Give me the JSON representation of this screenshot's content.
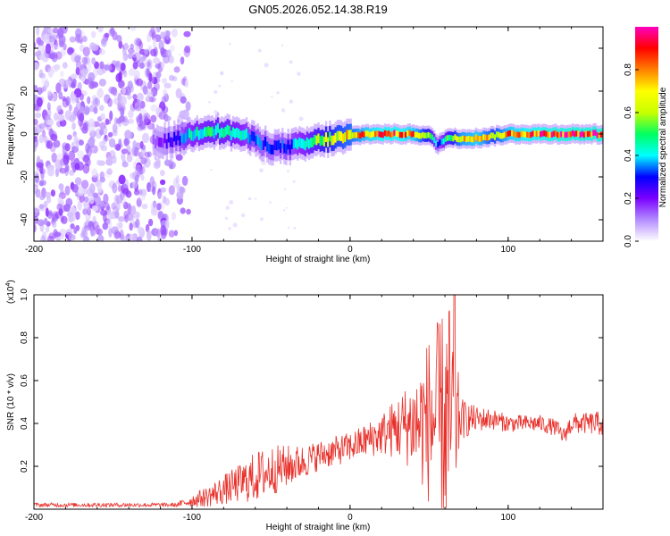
{
  "title": "GN05.2026.052.14.38.R19",
  "chart_data": [
    {
      "type": "heatmap",
      "xlabel": "Height of straight line (km)",
      "ylabel": "Frequency (Hz)",
      "xlim": [
        -200,
        160
      ],
      "ylim": [
        -50,
        50
      ],
      "x_ticks": [
        -200,
        -100,
        0,
        100
      ],
      "y_ticks": [
        -40,
        -20,
        0,
        20,
        40
      ],
      "noise_region": {
        "x_range": [
          -200,
          -108
        ],
        "y_range": [
          -50,
          50
        ],
        "description_level": "low"
      },
      "ridge": {
        "x": [
          -125,
          -115,
          -108,
          -100,
          -90,
          -80,
          -70,
          -60,
          -50,
          -40,
          -30,
          -20,
          -10,
          0,
          10,
          20,
          30,
          40,
          50,
          55,
          60,
          70,
          80,
          90,
          100,
          120,
          140,
          160
        ],
        "freq": [
          -4,
          -3,
          -2,
          0,
          2,
          1,
          0,
          -3,
          -6,
          -6,
          -5,
          -3,
          -2,
          -1,
          0,
          0,
          0,
          0,
          -1,
          -5,
          -2,
          -2,
          -2,
          -1,
          0,
          0,
          0,
          0
        ],
        "amplitude": [
          0.15,
          0.25,
          0.35,
          0.45,
          0.5,
          0.5,
          0.45,
          0.35,
          0.3,
          0.35,
          0.45,
          0.6,
          0.7,
          0.75,
          0.85,
          0.9,
          0.9,
          0.85,
          0.6,
          0.3,
          0.55,
          0.8,
          0.85,
          0.7,
          0.85,
          0.92,
          0.95,
          0.95
        ]
      },
      "colorbar": {
        "label": "Normalized spectral amplitude",
        "range": [
          0,
          1
        ],
        "ticks": [
          "0.0",
          "0.2",
          "0.4",
          "0.6",
          "0.8"
        ],
        "colors": [
          "#ffffff",
          "#b48cff",
          "#7a00ff",
          "#0000ff",
          "#00ffff",
          "#00ff60",
          "#c8ff00",
          "#ffff00",
          "#ff8000",
          "#ff0000",
          "#ff00c0"
        ]
      }
    },
    {
      "type": "line",
      "xlabel": "Height of straight line (km)",
      "ylabel": "SNR (10 * v/v)",
      "y_multiplier": "(x10",
      "y_multiplier_exp": "4",
      "y_multiplier_close": ")",
      "xlim": [
        -200,
        160
      ],
      "ylim": [
        0,
        1.0
      ],
      "x_ticks": [
        -200,
        -100,
        0,
        100
      ],
      "y_ticks": [
        0.2,
        0.4,
        0.6,
        0.8,
        1.0
      ],
      "series": [
        {
          "name": "SNR",
          "color": "#e8302a",
          "x": [
            -200,
            -150,
            -110,
            -100,
            -90,
            -80,
            -70,
            -60,
            -50,
            -40,
            -30,
            -20,
            -10,
            0,
            10,
            20,
            30,
            40,
            45,
            50,
            55,
            60,
            62,
            65,
            70,
            80,
            90,
            100,
            110,
            120,
            130,
            135,
            140,
            150,
            160
          ],
          "y_base": [
            0.02,
            0.02,
            0.02,
            0.04,
            0.06,
            0.09,
            0.12,
            0.15,
            0.18,
            0.2,
            0.22,
            0.25,
            0.27,
            0.29,
            0.32,
            0.35,
            0.38,
            0.4,
            0.4,
            0.42,
            0.42,
            0.4,
            0.4,
            0.42,
            0.42,
            0.42,
            0.42,
            0.4,
            0.4,
            0.4,
            0.38,
            0.34,
            0.4,
            0.4,
            0.4
          ],
          "y_noise": [
            0.01,
            0.01,
            0.01,
            0.03,
            0.05,
            0.07,
            0.09,
            0.12,
            0.12,
            0.1,
            0.08,
            0.07,
            0.07,
            0.07,
            0.08,
            0.1,
            0.15,
            0.22,
            0.3,
            0.4,
            0.45,
            0.55,
            0.6,
            0.5,
            0.1,
            0.06,
            0.05,
            0.04,
            0.04,
            0.04,
            0.04,
            0.04,
            0.05,
            0.05,
            0.06
          ],
          "peak": {
            "x": 66,
            "y": 1.0
          }
        }
      ]
    }
  ]
}
